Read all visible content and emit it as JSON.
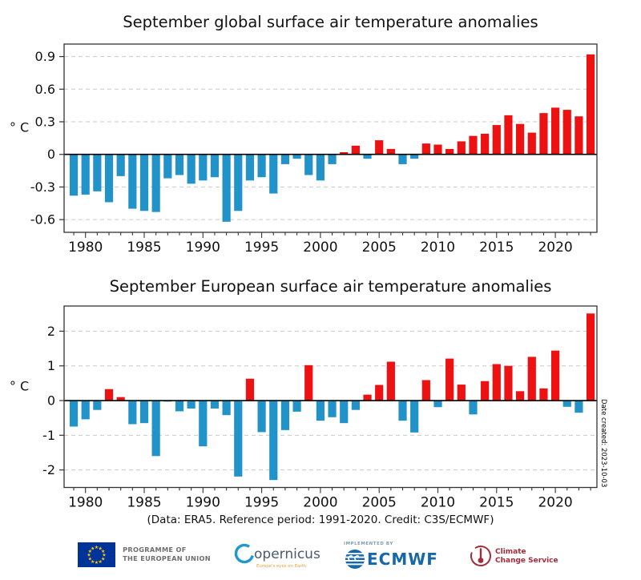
{
  "date_created": "Date created: 2023-10-03",
  "caption": "(Data: ERA5.  Reference period: 1991-2020.  Credit: C3S/ECMWF)",
  "colors": {
    "positive_bar": "#ee1111",
    "negative_bar": "#2193c8",
    "grid": "#c9c9c9",
    "frame": "#333333",
    "zero_line": "#000000"
  },
  "chart_data": [
    {
      "type": "bar",
      "title": "September global surface air temperature anomalies",
      "ylabel": "° C",
      "xlabel": "",
      "x": [
        1979,
        1980,
        1981,
        1982,
        1983,
        1984,
        1985,
        1986,
        1987,
        1988,
        1989,
        1990,
        1991,
        1992,
        1993,
        1994,
        1995,
        1996,
        1997,
        1998,
        1999,
        2000,
        2001,
        2002,
        2003,
        2004,
        2005,
        2006,
        2007,
        2008,
        2009,
        2010,
        2011,
        2012,
        2013,
        2014,
        2015,
        2016,
        2017,
        2018,
        2019,
        2020,
        2021,
        2022,
        2023
      ],
      "values": [
        -0.38,
        -0.37,
        -0.34,
        -0.44,
        -0.2,
        -0.5,
        -0.52,
        -0.53,
        -0.22,
        -0.19,
        -0.27,
        -0.24,
        -0.21,
        -0.62,
        -0.52,
        -0.24,
        -0.21,
        -0.36,
        -0.09,
        -0.04,
        -0.19,
        -0.24,
        -0.09,
        0.02,
        0.08,
        -0.04,
        0.13,
        0.05,
        -0.09,
        -0.04,
        0.1,
        0.09,
        0.05,
        0.12,
        0.17,
        0.19,
        0.27,
        0.36,
        0.28,
        0.2,
        0.38,
        0.43,
        0.41,
        0.35,
        0.92
      ],
      "ylim": [
        -0.717,
        1.015
      ],
      "xlim": [
        1978.2,
        2023.5
      ],
      "yticks": [
        "0.9",
        "0.6",
        "0.3",
        "0",
        "-0.3",
        "-0.6"
      ],
      "xticks": [
        1980,
        1985,
        1990,
        1995,
        2000,
        2005,
        2010,
        2015,
        2020
      ],
      "grid": "horizontal-dashed",
      "legend": "none",
      "color_rule": "red above zero, blue below zero"
    },
    {
      "type": "bar",
      "title": "September European surface air temperature anomalies",
      "ylabel": "° C",
      "xlabel": "",
      "x": [
        1979,
        1980,
        1981,
        1982,
        1983,
        1984,
        1985,
        1986,
        1987,
        1988,
        1989,
        1990,
        1991,
        1992,
        1993,
        1994,
        1995,
        1996,
        1997,
        1998,
        1999,
        2000,
        2001,
        2002,
        2003,
        2004,
        2005,
        2006,
        2007,
        2008,
        2009,
        2010,
        2011,
        2012,
        2013,
        2014,
        2015,
        2016,
        2017,
        2018,
        2019,
        2020,
        2021,
        2022,
        2023
      ],
      "values": [
        -0.75,
        -0.54,
        -0.27,
        0.33,
        0.1,
        -0.68,
        -0.65,
        -1.6,
        -0.03,
        -0.31,
        -0.23,
        -1.32,
        -0.23,
        -0.42,
        -2.19,
        0.63,
        -0.91,
        -2.29,
        -0.85,
        -0.32,
        1.02,
        -0.58,
        -0.48,
        -0.65,
        -0.27,
        0.17,
        0.45,
        1.12,
        -0.58,
        -0.92,
        0.59,
        -0.19,
        1.21,
        0.46,
        -0.4,
        0.56,
        1.05,
        1.0,
        0.27,
        1.26,
        0.35,
        1.44,
        -0.18,
        -0.35,
        2.51
      ],
      "ylim": [
        -2.505,
        2.725
      ],
      "xlim": [
        1978.2,
        2023.5
      ],
      "yticks": [
        "2",
        "1",
        "0",
        "-1",
        "-2"
      ],
      "xticks": [
        1980,
        1985,
        1990,
        1995,
        2000,
        2005,
        2010,
        2015,
        2020
      ],
      "grid": "horizontal-dashed",
      "legend": "none",
      "color_rule": "red above zero, blue below zero"
    }
  ],
  "footer": {
    "eu_programme": {
      "line1": "PROGRAMME OF",
      "line2": "THE EUROPEAN UNION"
    },
    "copernicus": {
      "name": "Copernicus",
      "tagline": "Europe's eyes on Earth"
    },
    "ecmwf": {
      "implemented_by": "IMPLEMENTED BY",
      "name": "ECMWF"
    },
    "c3s": {
      "line1": "Climate",
      "line2": "Change Service"
    }
  }
}
